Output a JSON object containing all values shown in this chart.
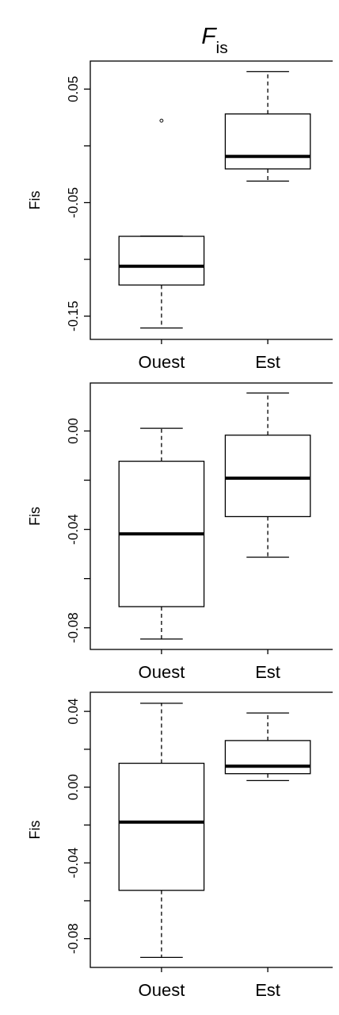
{
  "chart_data": [
    {
      "type": "box",
      "title": "F$_{is}$",
      "ylabel": "Fis",
      "categories": [
        "Ouest",
        "Est"
      ],
      "ylim": [
        -0.1705,
        0.0747
      ],
      "yticks": [
        -0.15,
        {
          "value": -0.1,
          "label": null
        },
        -0.05,
        {
          "value": 0,
          "label": null
        },
        0.05
      ],
      "boxes": [
        {
          "low": -0.1605,
          "q1": -0.1226,
          "median": -0.1061,
          "q3": -0.0797,
          "high": -0.0797,
          "outliers": [
            0.0222
          ]
        },
        {
          "low": -0.0311,
          "q1": -0.0203,
          "median": -0.0093,
          "q3": 0.0281,
          "high": 0.0654
        }
      ]
    },
    {
      "type": "box",
      "ylabel": "Fis",
      "categories": [
        "Ouest",
        "Est"
      ],
      "ylim": [
        -0.0888,
        0.0195
      ],
      "yticks": [
        {
          "value": -0.08,
          "label": "-0.08"
        },
        {
          "value": -0.06,
          "label": null
        },
        {
          "value": -0.04,
          "label": "-0.04"
        },
        {
          "value": -0.02,
          "label": null
        },
        {
          "value": 0,
          "label": "0.00"
        }
      ],
      "boxes": [
        {
          "low": -0.0846,
          "q1": -0.0714,
          "median": -0.0418,
          "q3": -0.0123,
          "high": 0.0011
        },
        {
          "low": -0.0513,
          "q1": -0.0348,
          "median": -0.0192,
          "q3": -0.0017,
          "high": 0.0154
        }
      ]
    },
    {
      "type": "box",
      "ylabel": "Fis",
      "categories": [
        "Ouest",
        "Est"
      ],
      "ylim": [
        -0.0952,
        0.0501
      ],
      "yticks": [
        {
          "value": -0.08,
          "label": "-0.08"
        },
        {
          "value": -0.06,
          "label": null
        },
        {
          "value": -0.04,
          "label": "-0.04"
        },
        {
          "value": -0.02,
          "label": null
        },
        {
          "value": 0,
          "label": "0.00"
        },
        {
          "value": 0.02,
          "label": null
        },
        {
          "value": 0.04,
          "label": "0.04"
        }
      ],
      "boxes": [
        {
          "low": -0.0899,
          "q1": -0.0545,
          "median": -0.0185,
          "q3": 0.0126,
          "high": 0.0443
        },
        {
          "low": 0.0035,
          "q1": 0.0071,
          "median": 0.0111,
          "q3": 0.0246,
          "high": 0.0392
        }
      ]
    }
  ]
}
